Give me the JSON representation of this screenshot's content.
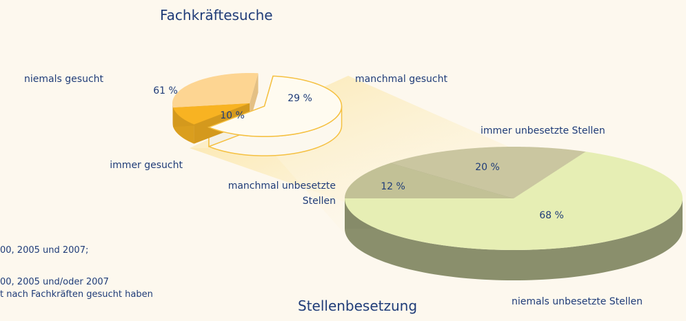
{
  "chart_data": [
    {
      "type": "pie",
      "title": "Fachkräftesuche",
      "categories": [
        "niemals gesucht",
        "manchmal gesucht",
        "immer gesucht"
      ],
      "values": [
        61,
        29,
        10
      ],
      "value_labels": [
        "61 %",
        "29 %",
        "10 %"
      ],
      "colors": [
        "#fffbf0",
        "#fdd592",
        "#f8b322"
      ]
    },
    {
      "type": "pie",
      "title": "Stellenbesetzung",
      "categories": [
        "manchmal unbesetzte Stellen",
        "immer unbesetzte Stellen",
        "niemals unbesetzte Stellen"
      ],
      "values": [
        12,
        20,
        68
      ],
      "value_labels": [
        "12 %",
        "20 %",
        "68 %"
      ],
      "colors": [
        "#c2c196",
        "#cac6a0",
        "#e6eeb4"
      ]
    }
  ],
  "notes": [
    "00, 2005 und 2007;",
    "00, 2005 und/oder 2007",
    "t nach Fachkräften gesucht haben"
  ]
}
